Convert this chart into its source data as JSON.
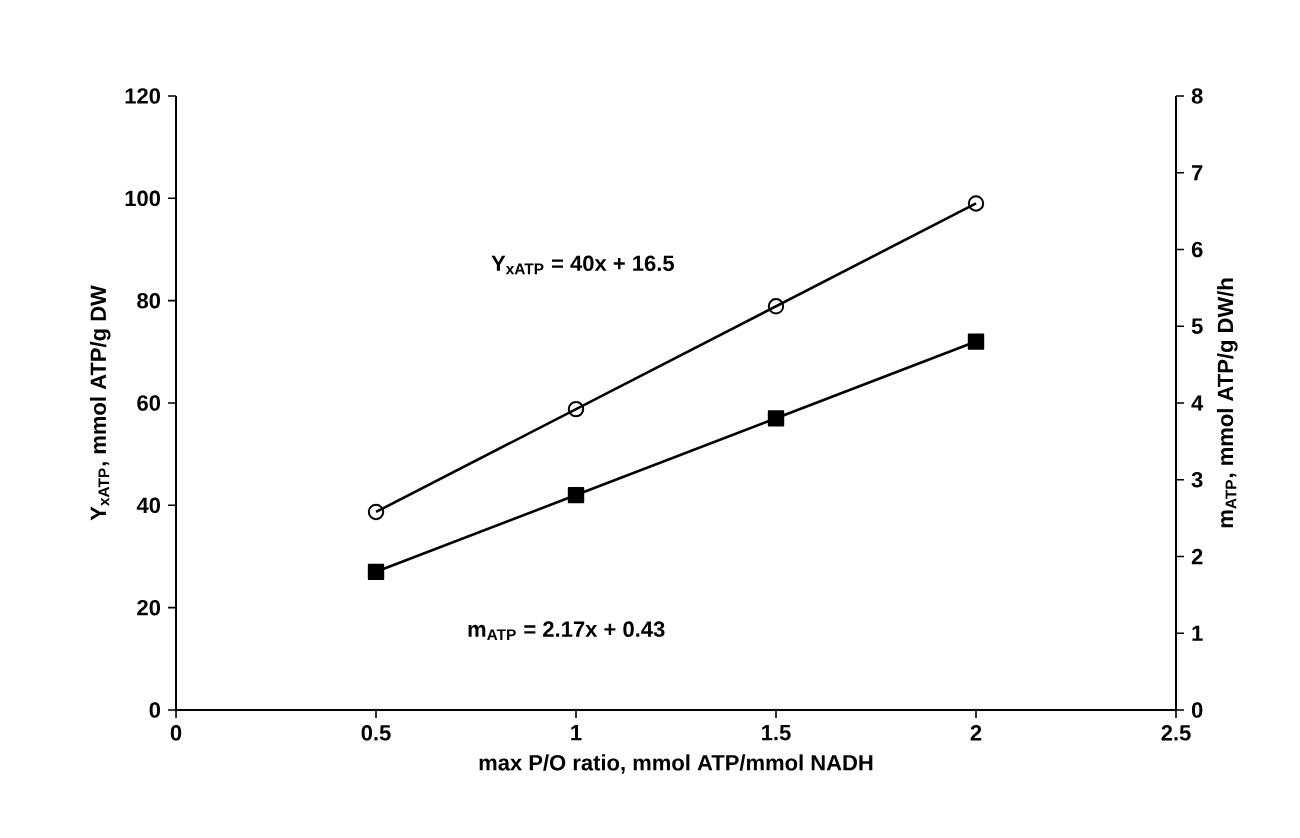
{
  "chart_data": {
    "type": "line",
    "xlabel": "max P/O ratio, mmol ATP/mmol NADH",
    "ylabel": "Y$_{xATP}$, mmol ATP/g DW",
    "y2label": "m$_{ATP}$, mmol ATP/g DW/h",
    "x": [
      0.5,
      1,
      1.5,
      2
    ],
    "series": [
      {
        "color": "#000000",
        "marker": "circle",
        "values": [
          38.7,
          58.8,
          78.9,
          99
        ]
      },
      {
        "color": "#000000",
        "marker": "square",
        "axis": "y2",
        "values": [
          1.8,
          2.8,
          3.8,
          4.8
        ]
      }
    ],
    "xlim": [
      0,
      2.5
    ],
    "xticks": [
      0,
      0.5,
      1,
      1.5,
      2,
      2.5
    ],
    "ylim": [
      0,
      120
    ],
    "yticks": [
      0,
      20,
      40,
      60,
      80,
      100,
      120
    ],
    "y2lim": [
      0,
      8
    ],
    "y2ticks": [
      0,
      1,
      2,
      3,
      4,
      5,
      6,
      7,
      8
    ],
    "annotations": [
      "Y$_{xATP}$ = 40x + 16.5",
      "m$_{ATP}$ = 2.17x + 0.43"
    ],
    "line_style": "solid"
  }
}
